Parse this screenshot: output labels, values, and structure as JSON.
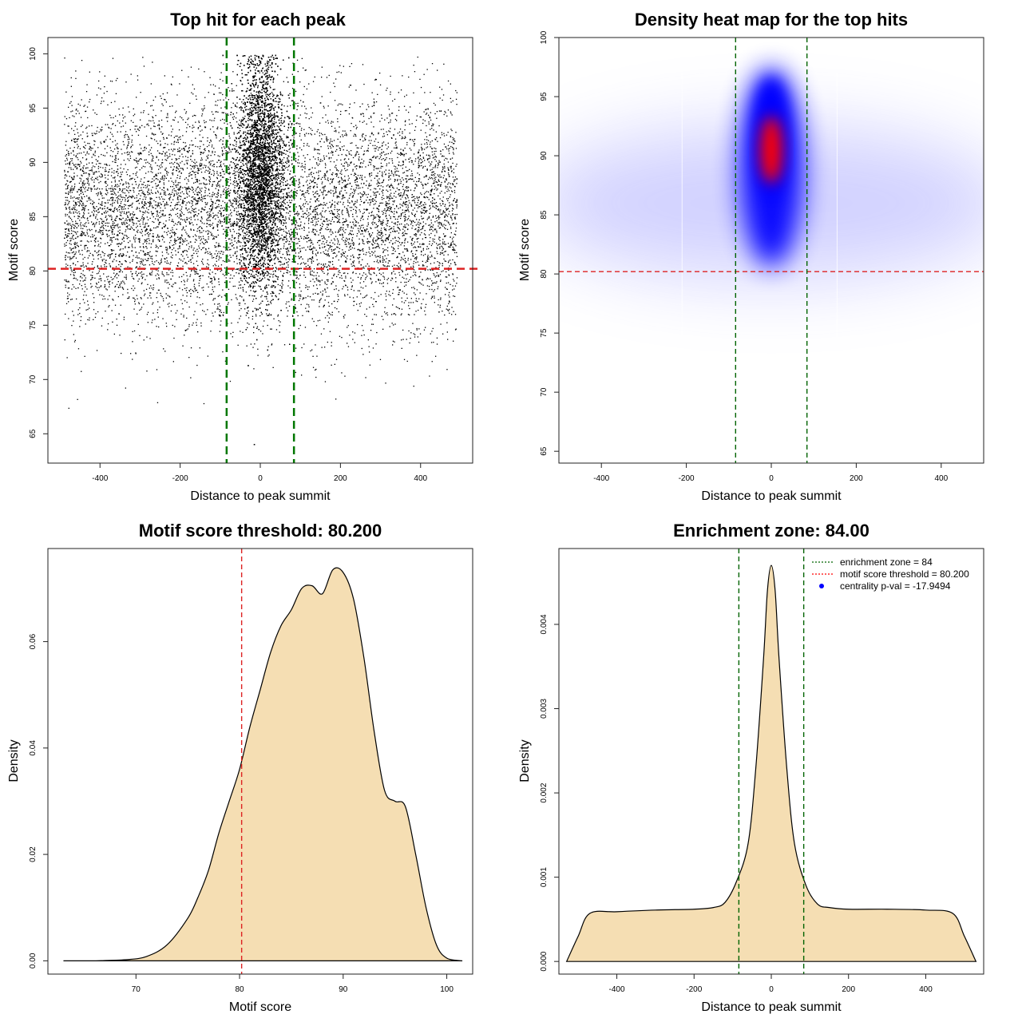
{
  "chart_data": [
    {
      "type": "scatter",
      "title": "Top hit for each peak",
      "xlabel": "Distance to peak summit",
      "ylabel": "Motif score",
      "xlim": [
        -530,
        530
      ],
      "ylim": [
        62.3,
        101.5
      ],
      "xticks": [
        -400,
        -200,
        0,
        200,
        400
      ],
      "yticks": [
        65,
        70,
        75,
        80,
        85,
        90,
        95,
        100
      ],
      "points_description_cluster": {
        "background": {
          "x_range": [
            -490,
            490
          ],
          "score_mean": 85.5,
          "score_sd": 5.2,
          "count": 9000
        },
        "central": {
          "x_center": 0,
          "x_sd": 28,
          "score_mean": 89,
          "score_sd": 5.2,
          "count": 11000
        }
      },
      "hlines": [
        80.2
      ],
      "vlines": [
        -84,
        84
      ]
    },
    {
      "type": "heatmap",
      "title": "Density heat map for the top hits",
      "xlabel": "Distance to peak summit",
      "ylabel": "Motif score",
      "xlim": [
        -500,
        500
      ],
      "ylim": [
        64,
        100
      ],
      "xticks": [
        -400,
        -200,
        0,
        200,
        400
      ],
      "yticks": [
        65,
        70,
        75,
        80,
        85,
        90,
        95,
        100
      ],
      "peak": {
        "x": 0,
        "y": 90.5
      },
      "hlines": [
        80.2
      ],
      "vlines": [
        -84,
        84
      ]
    },
    {
      "type": "area",
      "title": "Motif score threshold: 80.200",
      "xlabel": "Motif score",
      "ylabel": "Density",
      "xlim": [
        61.5,
        102.5
      ],
      "ylim": [
        -0.0025,
        0.0775
      ],
      "xticks": [
        70,
        80,
        90,
        100
      ],
      "yticks": [
        0.0,
        0.02,
        0.04,
        0.06
      ],
      "ytick_labels": [
        "0.00",
        "0.02",
        "0.04",
        "0.06"
      ],
      "x": [
        63,
        66,
        69,
        71,
        73,
        75,
        76,
        77,
        78,
        79,
        80,
        81,
        82,
        83,
        84,
        85,
        86,
        87,
        88,
        89,
        90,
        91,
        92,
        93,
        94,
        95,
        96,
        97,
        98,
        99,
        100,
        101.5
      ],
      "values": [
        0.0,
        0.0,
        0.0002,
        0.0008,
        0.003,
        0.008,
        0.012,
        0.017,
        0.024,
        0.03,
        0.036,
        0.044,
        0.051,
        0.058,
        0.063,
        0.066,
        0.07,
        0.0705,
        0.069,
        0.0735,
        0.073,
        0.068,
        0.057,
        0.043,
        0.032,
        0.03,
        0.029,
        0.02,
        0.01,
        0.003,
        0.0005,
        0.0
      ],
      "vlines": [
        80.2
      ]
    },
    {
      "type": "area",
      "title": "Enrichment zone: 84.00",
      "xlabel": "Distance to peak summit",
      "ylabel": "Density",
      "xlim": [
        -550,
        550
      ],
      "ylim": [
        -0.00015,
        0.0049
      ],
      "xticks": [
        -400,
        -200,
        0,
        200,
        400
      ],
      "yticks": [
        0.0,
        0.001,
        0.002,
        0.003,
        0.004
      ],
      "ytick_labels": [
        "0.000",
        "0.001",
        "0.002",
        "0.003",
        "0.004"
      ],
      "x": [
        -530,
        -500,
        -470,
        -400,
        -300,
        -200,
        -150,
        -120,
        -90,
        -60,
        -40,
        -20,
        -10,
        0,
        10,
        20,
        40,
        60,
        90,
        120,
        150,
        200,
        300,
        400,
        470,
        500,
        530
      ],
      "values": [
        0.0,
        0.0003,
        0.00057,
        0.00059,
        0.00061,
        0.00062,
        0.00064,
        0.0007,
        0.00095,
        0.0014,
        0.0023,
        0.0036,
        0.0044,
        0.0047,
        0.0044,
        0.0036,
        0.0023,
        0.0014,
        0.0009,
        0.00068,
        0.00064,
        0.00062,
        0.00062,
        0.00061,
        0.00057,
        0.0003,
        0.0
      ],
      "vlines": [
        -84,
        84
      ],
      "legend": [
        {
          "label": "enrichment zone = 84",
          "color": "#006400",
          "style": "dotted"
        },
        {
          "label": "motif score threshold = 80.200",
          "color": "#ff0000",
          "style": "dotted"
        },
        {
          "label": "centrality p-val = -17.9494",
          "color": "#0000ff",
          "style": "point"
        }
      ]
    }
  ],
  "colors": {
    "fill": "#f5deb3",
    "green": "#006400",
    "red": "#dd0000",
    "blue": "#0000ff",
    "heat_hot": "#ff0000"
  }
}
